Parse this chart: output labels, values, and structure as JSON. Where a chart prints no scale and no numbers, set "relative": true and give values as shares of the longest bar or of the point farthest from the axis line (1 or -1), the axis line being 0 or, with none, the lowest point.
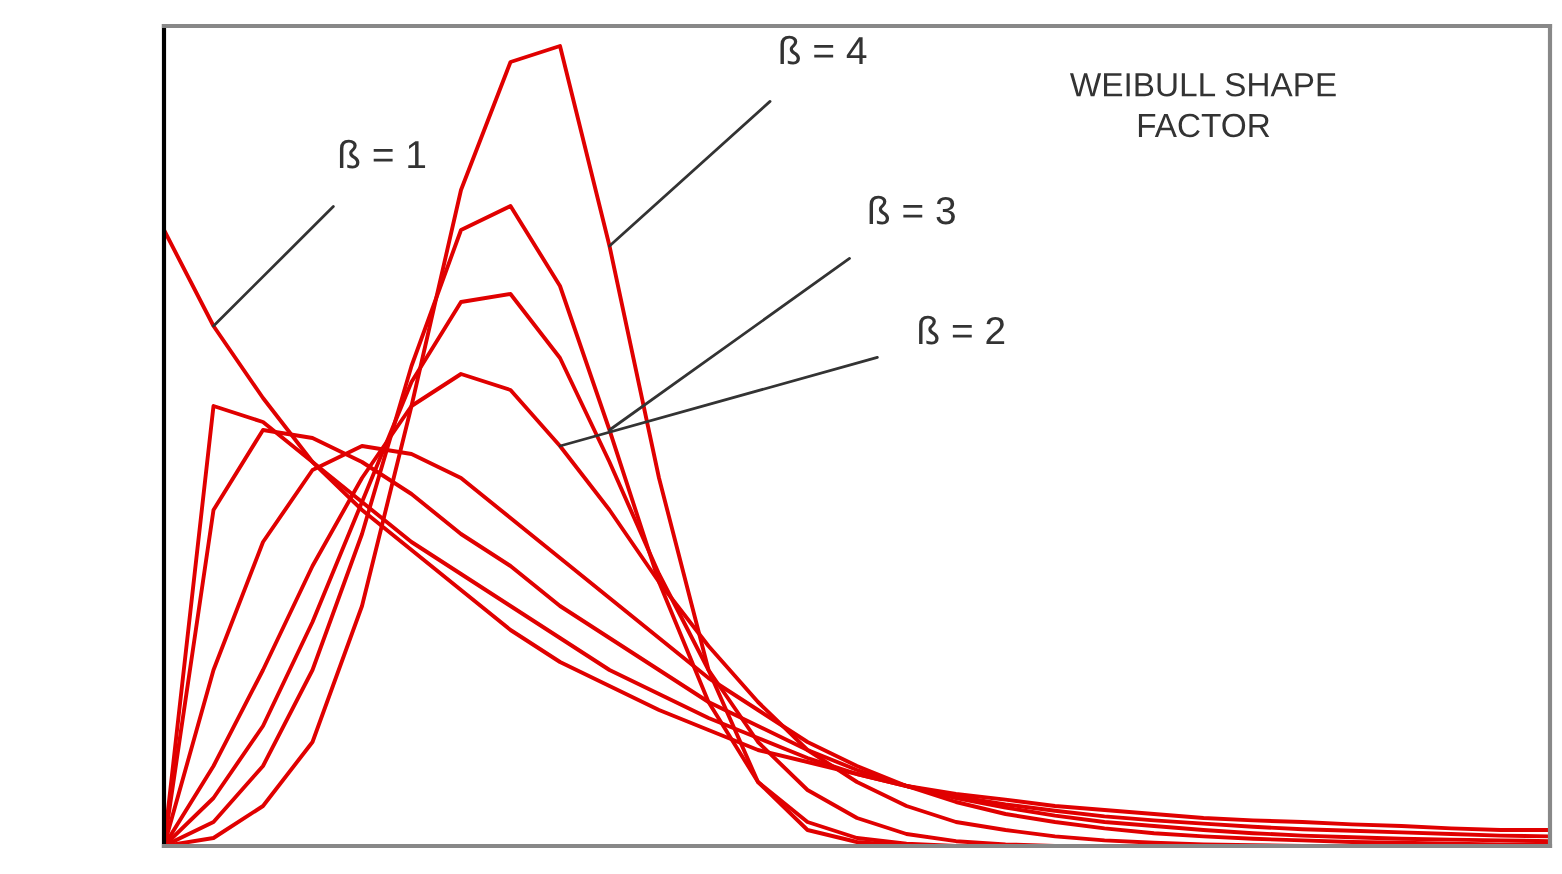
{
  "chart_data": {
    "type": "line",
    "title": "WEIBULL SHAPE\nFACTOR",
    "relative": true,
    "grid": false,
    "annotations": [
      "ß = 1",
      "ß = 2",
      "ß = 3",
      "ß = 4"
    ],
    "categories": [
      null,
      null,
      null,
      null,
      null,
      null,
      null,
      null,
      null,
      null,
      null,
      null,
      null,
      null,
      null,
      null,
      null,
      null,
      null,
      null,
      null,
      null,
      null,
      null,
      null,
      null,
      null,
      null,
      null
    ],
    "series": [
      {
        "color": "#e00000",
        "values": [
          0.77,
          0.65,
          0.56,
          0.48,
          0.42,
          0.37,
          0.32,
          0.27,
          0.23,
          0.2,
          0.17,
          0.145,
          0.12,
          0.105,
          0.09,
          0.075,
          0.065,
          0.058,
          0.05,
          0.045,
          0.04,
          0.035,
          0.032,
          0.03,
          0.027,
          0.025,
          0.022,
          0.02,
          0.02
        ]
      },
      {
        "color": "#e00000",
        "values": [
          0,
          0.55,
          0.53,
          0.48,
          0.43,
          0.38,
          0.34,
          0.3,
          0.26,
          0.22,
          0.19,
          0.16,
          0.135,
          0.11,
          0.09,
          0.075,
          0.062,
          0.052,
          0.044,
          0.037,
          0.032,
          0.028,
          0.024,
          0.021,
          0.019,
          0.017,
          0.015,
          0.013,
          0.012
        ]
      },
      {
        "color": "#e00000",
        "values": [
          0,
          0.42,
          0.52,
          0.51,
          0.48,
          0.44,
          0.39,
          0.35,
          0.3,
          0.26,
          0.22,
          0.18,
          0.15,
          0.12,
          0.095,
          0.075,
          0.06,
          0.048,
          0.038,
          0.03,
          0.025,
          0.02,
          0.016,
          0.013,
          0.011,
          0.009,
          0.008,
          0.007,
          0.006
        ]
      },
      {
        "color": "#e00000",
        "values": [
          0,
          0.22,
          0.38,
          0.47,
          0.5,
          0.49,
          0.46,
          0.41,
          0.36,
          0.31,
          0.26,
          0.21,
          0.17,
          0.13,
          0.1,
          0.075,
          0.055,
          0.04,
          0.03,
          0.022,
          0.016,
          0.012,
          0.009,
          0.007,
          0.005,
          0.004,
          0.003,
          0.002,
          0.002
        ]
      },
      {
        "color": "#e00000",
        "values": [
          0,
          0.1,
          0.22,
          0.35,
          0.46,
          0.55,
          0.59,
          0.57,
          0.5,
          0.42,
          0.33,
          0.25,
          0.18,
          0.12,
          0.08,
          0.05,
          0.03,
          0.02,
          0.012,
          0.007,
          0.004,
          0.002,
          0.001,
          0,
          0,
          0,
          0,
          0,
          0
        ]
      },
      {
        "color": "#e00000",
        "values": [
          0,
          0.06,
          0.15,
          0.28,
          0.43,
          0.58,
          0.68,
          0.69,
          0.61,
          0.48,
          0.34,
          0.22,
          0.13,
          0.07,
          0.035,
          0.015,
          0.006,
          0.002,
          0,
          0,
          0,
          0,
          0,
          0,
          0,
          0,
          0,
          0,
          0
        ]
      },
      {
        "color": "#e00000",
        "values": [
          0,
          0.03,
          0.1,
          0.22,
          0.39,
          0.6,
          0.77,
          0.8,
          0.7,
          0.52,
          0.33,
          0.18,
          0.08,
          0.03,
          0.01,
          0.003,
          0,
          0,
          0,
          0,
          0,
          0,
          0,
          0,
          0,
          0,
          0,
          0,
          0
        ]
      },
      {
        "color": "#e00000",
        "values": [
          0,
          0.01,
          0.05,
          0.13,
          0.3,
          0.55,
          0.82,
          0.98,
          1.0,
          0.75,
          0.46,
          0.22,
          0.08,
          0.02,
          0.005,
          0,
          0,
          0,
          0,
          0,
          0,
          0,
          0,
          0,
          0,
          0,
          0,
          0,
          0
        ]
      }
    ]
  }
}
